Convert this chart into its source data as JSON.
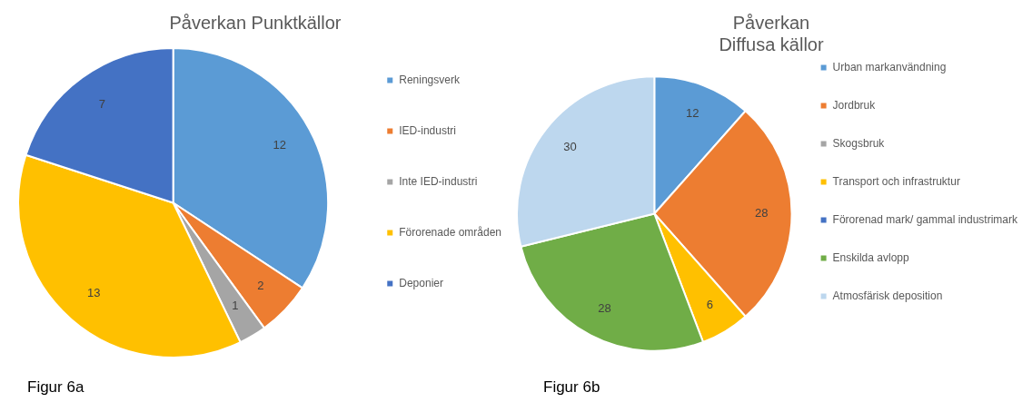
{
  "chart_data": [
    {
      "type": "pie",
      "title": "Påverkan Punktkällor",
      "categories": [
        "Reningsverk",
        "IED-industri",
        "Inte IED-industri",
        "Förorenade områden",
        "Deponier"
      ],
      "values": [
        12,
        2,
        1,
        13,
        7
      ],
      "colors": [
        "#5b9bd5",
        "#ed7d31",
        "#a5a5a5",
        "#ffc000",
        "#4472c4"
      ],
      "data_labels": true,
      "legend": "right",
      "annotations": [
        "Figur 6a"
      ]
    },
    {
      "type": "pie",
      "title": "Påverkan\nDiffusa källor",
      "categories": [
        "Urban markanvändning",
        "Jordbruk",
        "Skogsbruk",
        "Transport och infrastruktur",
        "Förorenad mark/ gammal industrimark",
        "Enskilda avlopp",
        "Atmosfärisk deposition"
      ],
      "values": [
        12,
        28,
        0,
        6,
        0,
        28,
        30
      ],
      "value_labels": [
        "12",
        "28",
        null,
        "6",
        null,
        "28",
        "30"
      ],
      "colors": [
        "#5b9bd5",
        "#ed7d31",
        "#a5a5a5",
        "#ffc000",
        "#4472c4",
        "#70ad47",
        "#bdd7ee"
      ],
      "legend": "right",
      "annotations": [
        "Figur 6b"
      ]
    }
  ]
}
